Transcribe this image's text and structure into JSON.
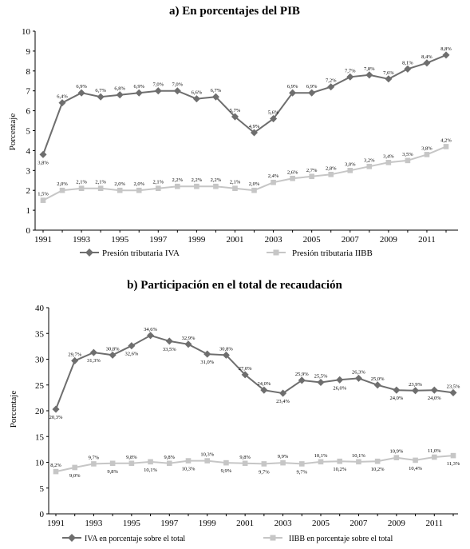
{
  "colors": {
    "dark_series": "#6e6e6e",
    "light_series": "#c6c6c6",
    "axis": "#000000"
  },
  "chart_data": [
    {
      "type": "line",
      "title": "a) En porcentajes del PIB",
      "ylabel": "Porcentaje",
      "xlabel": "",
      "ylim": [
        0,
        10
      ],
      "yticks": [
        "0",
        "1",
        "2",
        "3",
        "4",
        "5",
        "6",
        "7",
        "8",
        "9",
        "10"
      ],
      "x": [
        1991,
        1992,
        1993,
        1994,
        1995,
        1996,
        1997,
        1998,
        1999,
        2000,
        2001,
        2002,
        2003,
        2004,
        2005,
        2006,
        2007,
        2008,
        2009,
        2010,
        2011,
        2012
      ],
      "xtick_labels": [
        "1991",
        "1993",
        "1995",
        "1997",
        "1999",
        "2001",
        "2003",
        "2005",
        "2007",
        "2009",
        "2011"
      ],
      "grid": false,
      "legend_position": "bottom",
      "series": [
        {
          "name": "Presión tributaria IVA",
          "marker": "diamond",
          "color": "#6e6e6e",
          "values": [
            3.8,
            6.4,
            6.9,
            6.7,
            6.8,
            6.9,
            7.0,
            7.0,
            6.6,
            6.7,
            5.7,
            4.9,
            5.6,
            6.9,
            6.9,
            7.2,
            7.7,
            7.8,
            7.6,
            8.1,
            8.4,
            8.8
          ],
          "labels": [
            "3,8%",
            "6,4%",
            "6,9%",
            "6,7%",
            "6,8%",
            "6,9%",
            "7,0%",
            "7,0%",
            "6,6%",
            "6,7%",
            "5,7%",
            "4,9%",
            "5,6%",
            "6,9%",
            "6,9%",
            "7,2%",
            "7,7%",
            "7,8%",
            "7,6%",
            "8,1%",
            "8,4%",
            "8,8%"
          ],
          "label_pos": [
            "below",
            "above",
            "above",
            "above",
            "above",
            "above",
            "above",
            "above",
            "above",
            "above",
            "above",
            "above",
            "above",
            "above",
            "above",
            "above",
            "above",
            "above",
            "above",
            "above",
            "above",
            "above"
          ]
        },
        {
          "name": "Presión tributaria IIBB",
          "marker": "square",
          "color": "#c6c6c6",
          "values": [
            1.5,
            2.0,
            2.1,
            2.1,
            2.0,
            2.0,
            2.1,
            2.2,
            2.2,
            2.2,
            2.1,
            2.0,
            2.4,
            2.6,
            2.7,
            2.8,
            3.0,
            3.2,
            3.4,
            3.5,
            3.8,
            4.2
          ],
          "labels": [
            "1,5%",
            "2,0%",
            "2,1%",
            "2,1%",
            "2,0%",
            "2,0%",
            "2,1%",
            "2,2%",
            "2,2%",
            "2,2%",
            "2,1%",
            "2,0%",
            "2,4%",
            "2,6%",
            "2,7%",
            "2,8%",
            "3,0%",
            "3,2%",
            "3,4%",
            "3,5%",
            "3,8%",
            "4,2%"
          ],
          "label_pos": [
            "above",
            "above",
            "above",
            "above",
            "above",
            "above",
            "above",
            "above",
            "above",
            "above",
            "above",
            "above",
            "above",
            "above",
            "above",
            "above",
            "above",
            "above",
            "above",
            "above",
            "above",
            "above"
          ]
        }
      ]
    },
    {
      "type": "line",
      "title": "b) Participación en el total de recaudación",
      "ylabel": "Porcentaje",
      "xlabel": "",
      "ylim": [
        0,
        40
      ],
      "yticks": [
        "0",
        "5",
        "10",
        "15",
        "20",
        "25",
        "30",
        "35",
        "40"
      ],
      "x": [
        1991,
        1992,
        1993,
        1994,
        1995,
        1996,
        1997,
        1998,
        1999,
        2000,
        2001,
        2002,
        2003,
        2004,
        2005,
        2006,
        2007,
        2008,
        2009,
        2010,
        2011,
        2012
      ],
      "xtick_labels": [
        "1991",
        "1993",
        "1995",
        "1997",
        "1999",
        "2001",
        "2003",
        "2005",
        "2007",
        "2009",
        "2011"
      ],
      "grid": false,
      "legend_position": "bottom",
      "series": [
        {
          "name": "IVA en porcentaje sobre el total",
          "marker": "diamond",
          "color": "#6e6e6e",
          "values": [
            20.3,
            29.7,
            31.3,
            30.8,
            32.6,
            34.6,
            33.5,
            32.9,
            31.0,
            30.8,
            27.0,
            24.0,
            23.4,
            25.9,
            25.5,
            26.0,
            26.3,
            25.0,
            24.0,
            23.9,
            24.0,
            23.5
          ],
          "labels": [
            "20,3%",
            "29,7%",
            "31,3%",
            "30,8%",
            "32,6%",
            "34,6%",
            "33,5%",
            "32,9%",
            "31,0%",
            "30,8%",
            "27,0%",
            "24,0%",
            "23,4%",
            "25,9%",
            "25,5%",
            "26,0%",
            "26,3%",
            "25,0%",
            "24,0%",
            "23,9%",
            "24,0%",
            "23,5%"
          ],
          "label_pos": [
            "below",
            "above",
            "below",
            "above",
            "below",
            "above",
            "below",
            "above",
            "below",
            "above",
            "above",
            "above",
            "below",
            "above",
            "above",
            "below",
            "above",
            "above",
            "below",
            "above",
            "below",
            "above"
          ]
        },
        {
          "name": "IIBB en porcentaje sobre el total",
          "marker": "square",
          "color": "#c6c6c6",
          "values": [
            8.2,
            9.0,
            9.7,
            9.8,
            9.8,
            10.1,
            9.8,
            10.3,
            10.3,
            9.9,
            9.8,
            9.7,
            9.9,
            9.7,
            10.1,
            10.2,
            10.1,
            10.2,
            10.9,
            10.4,
            11.0,
            11.3
          ],
          "labels": [
            "8,2%",
            "9,0%",
            "9,7%",
            "9,8%",
            "9,8%",
            "10,1%",
            "9,8%",
            "10,3%",
            "10,3%",
            "9,9%",
            "9,8%",
            "9,7%",
            "9,9%",
            "9,7%",
            "10,1%",
            "10,2%",
            "10,1%",
            "10,2%",
            "10,9%",
            "10,4%",
            "11,0%",
            "11,3%"
          ],
          "label_pos": [
            "above",
            "below",
            "above",
            "below",
            "above",
            "below",
            "above",
            "below",
            "above",
            "below",
            "above",
            "below",
            "above",
            "below",
            "above",
            "below",
            "above",
            "below",
            "above",
            "below",
            "above",
            "below"
          ]
        }
      ]
    }
  ]
}
